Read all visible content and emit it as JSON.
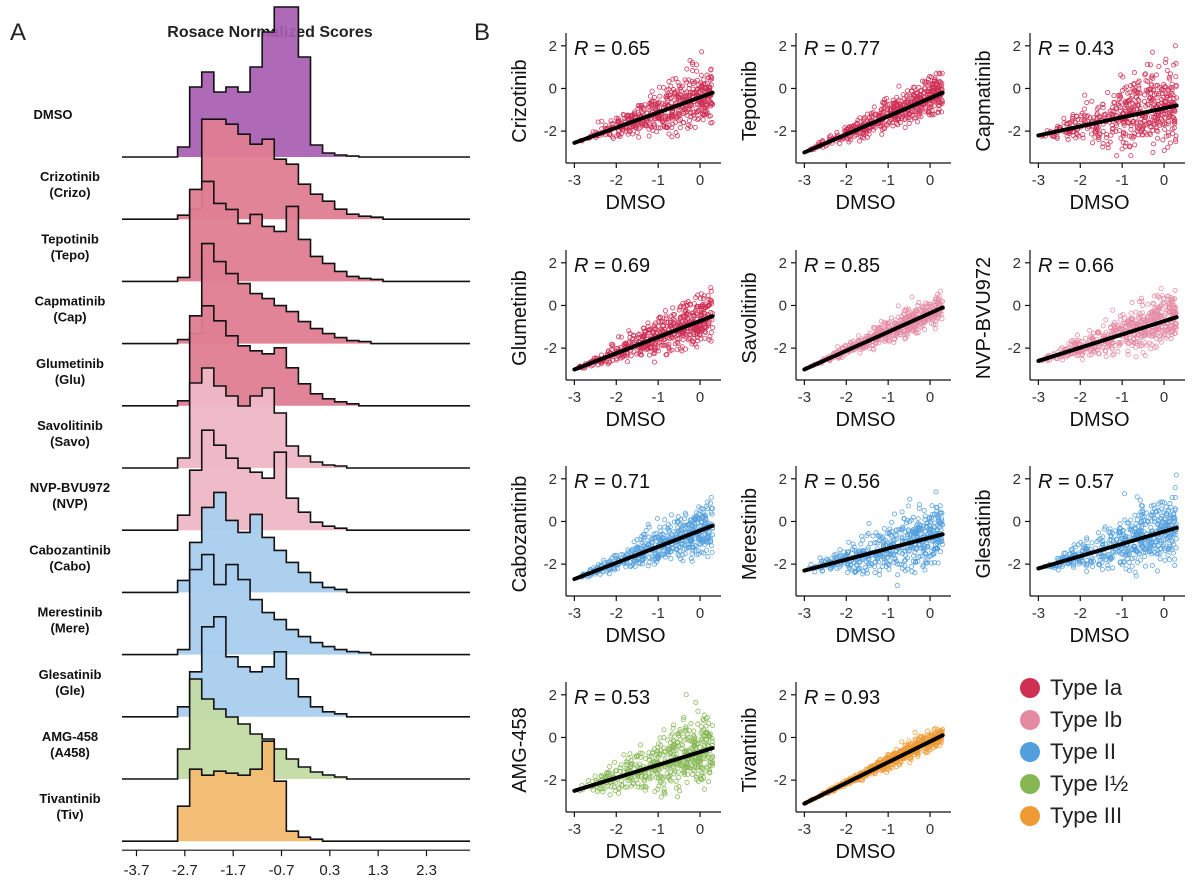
{
  "figure": {
    "panel_a": {
      "label": "A",
      "title": "Rosace Normalized Scores"
    },
    "panel_b": {
      "label": "B"
    }
  },
  "chart_data": [
    {
      "type": "histogram-ridgeline",
      "title": "Rosace Normalized Scores",
      "bin_width": 0.25,
      "bin_start": -2.85,
      "xlim": [
        -4.0,
        3.2
      ],
      "x_ticks": [
        "-3.7",
        "-2.7",
        "-1.7",
        "-0.7",
        "0.3",
        "1.3",
        "2.3"
      ],
      "x_tick_values": [
        -3.7,
        -2.7,
        -1.7,
        -0.7,
        0.3,
        1.3,
        2.3
      ],
      "rows": [
        {
          "label": "DMSO",
          "sub": "",
          "type": "DMSO",
          "values": [
            0.1,
            0.7,
            0.85,
            0.65,
            0.7,
            0.65,
            0.9,
            1.25,
            1.5,
            1.5,
            1.0,
            0.12,
            0.04,
            0.02,
            0.01
          ]
        },
        {
          "label": "Crizotinib",
          "sub": "(Crizo)",
          "type": "Type Ia",
          "values": [
            0.04,
            0.1,
            1.0,
            1.0,
            0.95,
            0.85,
            0.75,
            0.8,
            0.6,
            0.55,
            0.35,
            0.25,
            0.18,
            0.1,
            0.05,
            0.03,
            0.02
          ]
        },
        {
          "label": "Tepotinib",
          "sub": "(Tepo)",
          "type": "Type Ia",
          "values": [
            0.04,
            0.92,
            1.0,
            0.78,
            0.72,
            0.58,
            0.67,
            0.55,
            0.5,
            0.75,
            0.42,
            0.25,
            0.18,
            0.1,
            0.05,
            0.03,
            0.02
          ]
        },
        {
          "label": "Capmatinib",
          "sub": "(Cap)",
          "type": "Type Ia",
          "values": [
            0.04,
            0.1,
            1.0,
            0.82,
            0.7,
            0.6,
            0.5,
            0.45,
            0.38,
            0.32,
            0.22,
            0.15,
            0.1,
            0.06,
            0.03,
            0.02
          ]
        },
        {
          "label": "Glumetinib",
          "sub": "(Glu)",
          "type": "Type Ia",
          "values": [
            0.05,
            0.9,
            1.0,
            0.85,
            0.7,
            0.6,
            0.55,
            0.52,
            0.58,
            0.38,
            0.22,
            0.12,
            0.07,
            0.04,
            0.02
          ]
        },
        {
          "label": "Savolitinib",
          "sub": "(Savo)",
          "type": "Type Ib",
          "values": [
            0.1,
            0.85,
            1.0,
            0.82,
            0.72,
            0.62,
            0.72,
            0.8,
            0.55,
            0.22,
            0.12,
            0.06,
            0.03,
            0.02
          ]
        },
        {
          "label": "NVP-BVU972",
          "sub": "(NVP)",
          "type": "Type Ib",
          "values": [
            0.15,
            0.6,
            1.0,
            0.85,
            0.72,
            0.62,
            0.58,
            0.52,
            0.78,
            0.32,
            0.18,
            0.08,
            0.04,
            0.02
          ]
        },
        {
          "label": "Cabozantinib",
          "sub": "(Cabo)",
          "type": "Type II",
          "values": [
            0.12,
            0.5,
            0.85,
            1.0,
            0.72,
            0.6,
            0.78,
            0.55,
            0.42,
            0.3,
            0.2,
            0.1,
            0.05,
            0.03
          ]
        },
        {
          "label": "Merestinib",
          "sub": "(Mere)",
          "type": "Type II",
          "values": [
            0.05,
            0.85,
            1.0,
            0.7,
            0.9,
            0.75,
            0.55,
            0.42,
            0.35,
            0.25,
            0.18,
            0.12,
            0.08,
            0.05,
            0.03,
            0.02
          ]
        },
        {
          "label": "Glesatinib",
          "sub": "(Gle)",
          "type": "Type II",
          "values": [
            0.1,
            0.45,
            0.9,
            1.0,
            0.6,
            0.5,
            0.45,
            0.5,
            0.65,
            0.38,
            0.2,
            0.1,
            0.05,
            0.03
          ]
        },
        {
          "label": "AMG-458",
          "sub": "(A458)",
          "type": "Type I½",
          "values": [
            0.3,
            1.0,
            0.8,
            0.7,
            0.62,
            0.55,
            0.45,
            0.4,
            0.3,
            0.2,
            0.12,
            0.07,
            0.04,
            0.02
          ]
        },
        {
          "label": "Tivantinib",
          "sub": "(Tiv)",
          "type": "Type III",
          "values": [
            0.35,
            0.72,
            0.66,
            0.7,
            0.68,
            0.66,
            0.72,
            1.0,
            0.6,
            0.1,
            0.04,
            0.02
          ]
        }
      ]
    },
    {
      "type": "scatter",
      "xlabel": "DMSO",
      "xlim": [
        -3.2,
        0.5
      ],
      "ylim": [
        -3.4,
        2.6
      ],
      "x_ticks": [
        -3,
        -2,
        -1,
        0
      ],
      "y_ticks": [
        -2,
        0,
        2
      ],
      "panels": [
        {
          "ylabel": "Crizotinib",
          "type": "Type Ia",
          "r_value": "0.65",
          "line": [
            [
              -3,
              -2.55
            ],
            [
              0.3,
              -0.2
            ]
          ]
        },
        {
          "ylabel": "Tepotinib",
          "type": "Type Ia",
          "r_value": "0.77",
          "line": [
            [
              -3,
              -3.0
            ],
            [
              0.3,
              -0.2
            ]
          ]
        },
        {
          "ylabel": "Capmatinib",
          "type": "Type Ia",
          "r_value": "0.43",
          "line": [
            [
              -3,
              -2.2
            ],
            [
              0.3,
              -0.8
            ]
          ]
        },
        {
          "ylabel": "Glumetinib",
          "type": "Type Ia",
          "r_value": "0.69",
          "line": [
            [
              -3,
              -3.0
            ],
            [
              0.3,
              -0.5
            ]
          ]
        },
        {
          "ylabel": "Savolitinib",
          "type": "Type Ib",
          "r_value": "0.85",
          "line": [
            [
              -3,
              -3.0
            ],
            [
              0.3,
              -0.1
            ]
          ]
        },
        {
          "ylabel": "NVP-BVU972",
          "type": "Type Ib",
          "r_value": "0.66",
          "line": [
            [
              -3,
              -2.6
            ],
            [
              0.3,
              -0.55
            ]
          ]
        },
        {
          "ylabel": "Cabozantinib",
          "type": "Type II",
          "r_value": "0.71",
          "line": [
            [
              -3,
              -2.7
            ],
            [
              0.3,
              -0.2
            ]
          ]
        },
        {
          "ylabel": "Merestinib",
          "type": "Type II",
          "r_value": "0.56",
          "line": [
            [
              -3,
              -2.3
            ],
            [
              0.3,
              -0.6
            ]
          ]
        },
        {
          "ylabel": "Glesatinib",
          "type": "Type II",
          "r_value": "0.57",
          "line": [
            [
              -3,
              -2.2
            ],
            [
              0.3,
              -0.3
            ]
          ]
        },
        {
          "ylabel": "AMG-458",
          "type": "Type I½",
          "r_value": "0.53",
          "line": [
            [
              -3,
              -2.5
            ],
            [
              0.3,
              -0.5
            ]
          ]
        },
        {
          "ylabel": "Tivantinib",
          "type": "Type III",
          "r_value": "0.93",
          "line": [
            [
              -3,
              -3.1
            ],
            [
              0.3,
              0.1
            ]
          ]
        }
      ]
    }
  ],
  "legend": {
    "items": [
      {
        "label": "Type Ia",
        "color": "#cf2f55"
      },
      {
        "label": "Type Ib",
        "color": "#e58aa3"
      },
      {
        "label": "Type II",
        "color": "#529fdd"
      },
      {
        "label": "Type I½",
        "color": "#86b753"
      },
      {
        "label": "Type III",
        "color": "#f09a35"
      }
    ]
  },
  "colors": {
    "DMSO": "#a85db1",
    "Type Ia": "#cf2f55",
    "Type Ib": "#e58aa3",
    "Type II": "#529fdd",
    "Type I½": "#86b753",
    "Type III": "#f09a35",
    "fill": {
      "DMSO": "#a85db1",
      "Type Ia": "#df7d92",
      "Type Ib": "#eeb7c6",
      "Type II": "#a9cdee",
      "Type I½": "#c3dba4",
      "Type III": "#f3bb6f"
    }
  }
}
